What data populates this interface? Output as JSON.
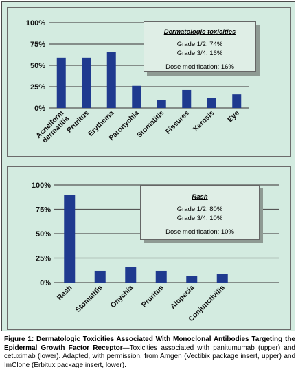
{
  "chart_data": [
    {
      "type": "bar",
      "categories": [
        "Acneiform dermatitis",
        "Pruritus",
        "Erythema",
        "Paronychia",
        "Stomatitis",
        "Fissures",
        "Xerosis",
        "Eye"
      ],
      "category_lines": [
        [
          "Acneiform",
          "dermatitis"
        ],
        [
          "Pruritus"
        ],
        [
          "Erythema"
        ],
        [
          "Paronychia"
        ],
        [
          "Stomatitis"
        ],
        [
          "Fissures"
        ],
        [
          "Xerosis"
        ],
        [
          "Eye"
        ]
      ],
      "values": [
        59,
        59,
        66,
        26,
        9,
        21,
        12,
        16
      ],
      "yticks": [
        "0%",
        "25%",
        "50%",
        "75%",
        "100%"
      ],
      "ylim": [
        0,
        100
      ],
      "bar_color": "#1f3a8f",
      "grid": true,
      "legend": {
        "title": "Dermatologic toxicities",
        "lines": [
          "Grade 1/2: 74%",
          "Grade 3/4: 16%"
        ],
        "footer": "Dose modification: 16%",
        "placement": "top-right"
      }
    },
    {
      "type": "bar",
      "categories": [
        "Rash",
        "Stomatitis",
        "Onychia",
        "Pruritus",
        "Alopecia",
        "Conjunctivitis"
      ],
      "category_lines": [
        [
          "Rash"
        ],
        [
          "Stomatitis"
        ],
        [
          "Onychia"
        ],
        [
          "Pruritus"
        ],
        [
          "Alopecia"
        ],
        [
          "Conjunctivitis"
        ]
      ],
      "values": [
        90,
        12,
        16,
        12,
        7,
        9
      ],
      "yticks": [
        "0%",
        "25%",
        "50%",
        "75%",
        "100%"
      ],
      "ylim": [
        0,
        100
      ],
      "bar_color": "#1f3a8f",
      "grid": true,
      "legend": {
        "title": "Rash",
        "lines": [
          "Grade 1/2: 80%",
          "Grade 3/4: 10%"
        ],
        "footer": "Dose modification: 10%",
        "placement": "top-right"
      }
    }
  ],
  "caption": {
    "bold": "Figure 1: Dermatologic Toxicities Associated With Monoclonal Antibodies Targeting the Epidermal Growth Factor Receptor",
    "text": "—Toxicities associated with panitumumab (upper) and cetuximab (lower). Adapted, with permission, from Amgen (Vectibix package insert, upper) and ImClone (Erbitux package insert, lower)."
  }
}
